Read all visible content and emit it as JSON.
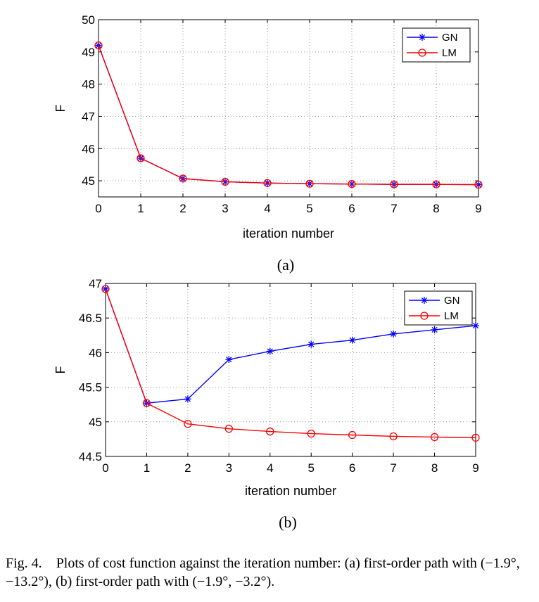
{
  "chart_data": [
    {
      "type": "line",
      "label": "(a)",
      "xlabel": "iteration number",
      "ylabel": "F",
      "xlim": [
        0,
        9
      ],
      "ylim": [
        44.5,
        50
      ],
      "xticks": [
        0,
        1,
        2,
        3,
        4,
        5,
        6,
        7,
        8,
        9
      ],
      "yticks": [
        45,
        46,
        47,
        48,
        49,
        50
      ],
      "grid": true,
      "legend_position": "top-right",
      "x": [
        0,
        1,
        2,
        3,
        4,
        5,
        6,
        7,
        8,
        9
      ],
      "series": [
        {
          "name": "GN",
          "color": "#0000ff",
          "marker": "star",
          "values": [
            49.2,
            45.7,
            45.07,
            44.97,
            44.93,
            44.91,
            44.9,
            44.89,
            44.89,
            44.88
          ]
        },
        {
          "name": "LM",
          "color": "#ff0000",
          "marker": "circle",
          "values": [
            49.2,
            45.7,
            45.07,
            44.97,
            44.93,
            44.91,
            44.9,
            44.89,
            44.89,
            44.88
          ]
        }
      ]
    },
    {
      "type": "line",
      "label": "(b)",
      "xlabel": "iteration number",
      "ylabel": "F",
      "xlim": [
        0,
        9
      ],
      "ylim": [
        44.5,
        47
      ],
      "xticks": [
        0,
        1,
        2,
        3,
        4,
        5,
        6,
        7,
        8,
        9
      ],
      "yticks": [
        44.5,
        45,
        45.5,
        46,
        46.5,
        47
      ],
      "grid": true,
      "legend_position": "top-right",
      "x": [
        0,
        1,
        2,
        3,
        4,
        5,
        6,
        7,
        8,
        9
      ],
      "series": [
        {
          "name": "GN",
          "color": "#0000ff",
          "marker": "star",
          "values": [
            46.92,
            45.27,
            45.33,
            45.9,
            46.02,
            46.12,
            46.18,
            46.27,
            46.33,
            46.39
          ]
        },
        {
          "name": "LM",
          "color": "#ff0000",
          "marker": "circle",
          "values": [
            46.92,
            45.27,
            44.97,
            44.9,
            44.86,
            44.83,
            44.81,
            44.79,
            44.78,
            44.77
          ]
        }
      ]
    }
  ],
  "caption": {
    "prefix": "Fig. 4.",
    "text": "Plots of cost function against the iteration number: (a) first-order path with (−1.9°, −13.2°), (b) first-order path with (−1.9°, −3.2°)."
  }
}
